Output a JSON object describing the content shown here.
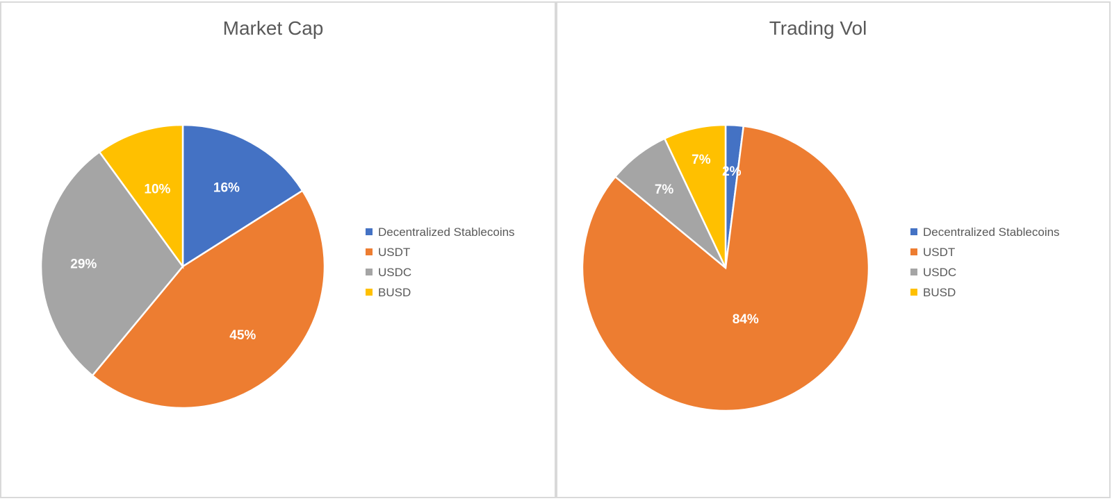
{
  "chart_data": [
    {
      "type": "pie",
      "title": "Market Cap",
      "categories": [
        "Decentralized Stablecoins",
        "USDT",
        "USDC",
        "BUSD"
      ],
      "values": [
        16,
        45,
        29,
        10
      ],
      "labels": [
        "16%",
        "45%",
        "29%",
        "10%"
      ],
      "colors": [
        "#4472C4",
        "#ED7D31",
        "#A5A5A5",
        "#FFC000"
      ],
      "legend": "right"
    },
    {
      "type": "pie",
      "title": "Trading Vol",
      "categories": [
        "Decentralized Stablecoins",
        "USDT",
        "USDC",
        "BUSD"
      ],
      "values": [
        2,
        84,
        7,
        7
      ],
      "labels": [
        "2%",
        "84%",
        "7%",
        "7%"
      ],
      "colors": [
        "#4472C4",
        "#ED7D31",
        "#A5A5A5",
        "#FFC000"
      ],
      "legend": "right"
    }
  ]
}
